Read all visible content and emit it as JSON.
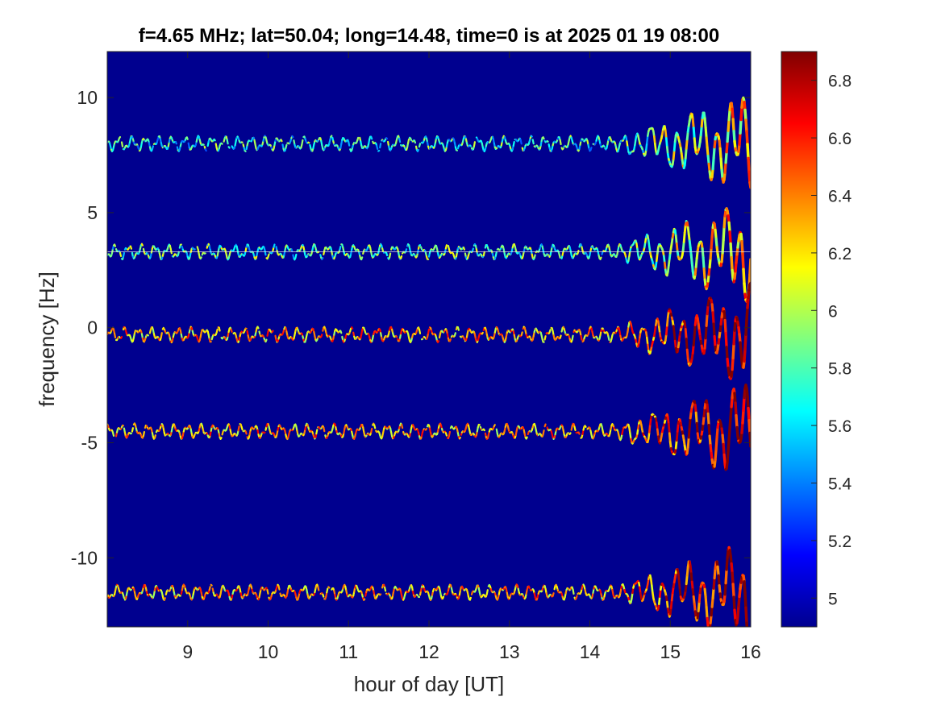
{
  "chart_data": {
    "type": "heatmap",
    "title": "f=4.65 MHz;  lat=50.04; long=14.48, time=0 is at 2025 01 19 08:00",
    "xlabel": "hour of day [UT]",
    "ylabel": "frequency [Hz]",
    "xlim": [
      8.0,
      16.0
    ],
    "ylim": [
      -13.0,
      12.0
    ],
    "x_ticks": [
      "9",
      "10",
      "11",
      "12",
      "13",
      "14",
      "15",
      "16"
    ],
    "y_ticks": [
      "10",
      "5",
      "0",
      "-5",
      "-10"
    ],
    "colorbar": {
      "range": [
        4.9,
        6.9
      ],
      "ticks": [
        "6.8",
        "6.6",
        "6.4",
        "6.2",
        "6",
        "5.8",
        "5.6",
        "5.4",
        "5.2",
        "5"
      ],
      "colormap": "jet"
    },
    "background_value": 4.9,
    "series": [
      {
        "center_hz": 8.0,
        "baseline_value": 5.7
      },
      {
        "center_hz": 3.3,
        "baseline_value": 5.8
      },
      {
        "center_hz": -0.3,
        "baseline_value": 6.3
      },
      {
        "center_hz": -4.5,
        "baseline_value": 6.3
      },
      {
        "center_hz": -11.5,
        "baseline_value": 6.3
      }
    ],
    "disturbance_start_hour": 14.3,
    "grid": false,
    "colors": {
      "background": "#00008f",
      "axis": "#262626"
    }
  }
}
